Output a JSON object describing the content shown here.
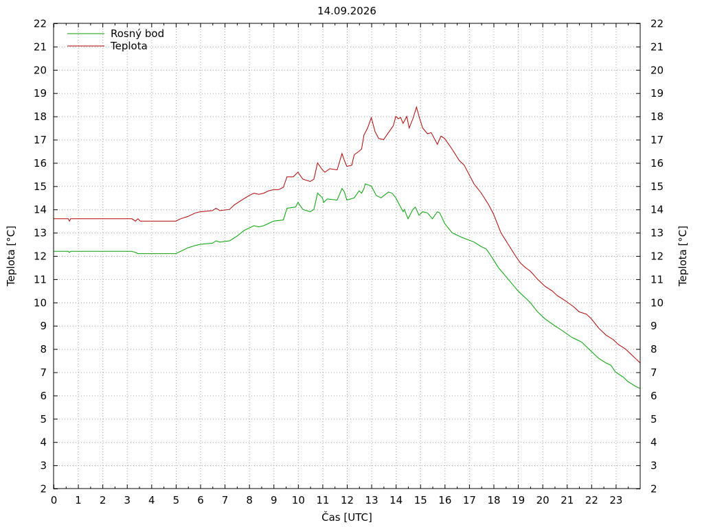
{
  "chart_data": {
    "type": "line",
    "title": "14.09.2026",
    "xlabel": "Čas [UTC]",
    "ylabel": "Teplota [°C]",
    "ylabel_right": "Teplota [°C]",
    "xlim": [
      0,
      24
    ],
    "ylim": [
      2,
      22
    ],
    "x_ticks": [
      0,
      1,
      2,
      3,
      4,
      5,
      6,
      7,
      8,
      9,
      10,
      11,
      12,
      13,
      14,
      15,
      16,
      17,
      18,
      19,
      20,
      21,
      22,
      23
    ],
    "y_ticks": [
      2,
      3,
      4,
      5,
      6,
      7,
      8,
      9,
      10,
      11,
      12,
      13,
      14,
      15,
      16,
      17,
      18,
      19,
      20,
      21,
      22
    ],
    "grid": true,
    "legend_position": "top-left",
    "series": [
      {
        "name": "Rosný bod",
        "color": "#00a000",
        "points": [
          [
            0,
            12.2
          ],
          [
            0.6,
            12.2
          ],
          [
            0.65,
            12.15
          ],
          [
            0.7,
            12.2
          ],
          [
            3.2,
            12.2
          ],
          [
            3.35,
            12.15
          ],
          [
            3.45,
            12.1
          ],
          [
            5.0,
            12.1
          ],
          [
            5.2,
            12.2
          ],
          [
            5.5,
            12.35
          ],
          [
            5.8,
            12.45
          ],
          [
            6.0,
            12.5
          ],
          [
            6.5,
            12.55
          ],
          [
            6.65,
            12.65
          ],
          [
            6.8,
            12.6
          ],
          [
            7.2,
            12.65
          ],
          [
            7.5,
            12.85
          ],
          [
            7.8,
            13.1
          ],
          [
            8.0,
            13.2
          ],
          [
            8.2,
            13.3
          ],
          [
            8.4,
            13.25
          ],
          [
            8.6,
            13.3
          ],
          [
            8.8,
            13.4
          ],
          [
            9.0,
            13.5
          ],
          [
            9.4,
            13.55
          ],
          [
            9.55,
            14.05
          ],
          [
            9.9,
            14.1
          ],
          [
            10.0,
            14.3
          ],
          [
            10.2,
            14.0
          ],
          [
            10.5,
            13.9
          ],
          [
            10.65,
            14.0
          ],
          [
            10.8,
            14.7
          ],
          [
            11.0,
            14.5
          ],
          [
            11.05,
            14.3
          ],
          [
            11.2,
            14.45
          ],
          [
            11.6,
            14.4
          ],
          [
            11.8,
            14.9
          ],
          [
            11.9,
            14.75
          ],
          [
            12.0,
            14.4
          ],
          [
            12.3,
            14.5
          ],
          [
            12.5,
            14.8
          ],
          [
            12.6,
            14.7
          ],
          [
            12.7,
            14.9
          ],
          [
            12.75,
            15.1
          ],
          [
            13.0,
            15.0
          ],
          [
            13.2,
            14.6
          ],
          [
            13.4,
            14.5
          ],
          [
            13.7,
            14.75
          ],
          [
            13.85,
            14.7
          ],
          [
            14.0,
            14.5
          ],
          [
            14.3,
            13.9
          ],
          [
            14.35,
            14.0
          ],
          [
            14.5,
            13.6
          ],
          [
            14.7,
            14.0
          ],
          [
            14.8,
            14.1
          ],
          [
            14.95,
            13.75
          ],
          [
            15.1,
            13.9
          ],
          [
            15.3,
            13.85
          ],
          [
            15.5,
            13.6
          ],
          [
            15.7,
            13.9
          ],
          [
            15.8,
            13.85
          ],
          [
            16.0,
            13.4
          ],
          [
            16.3,
            13.0
          ],
          [
            16.7,
            12.8
          ],
          [
            17.2,
            12.6
          ],
          [
            17.5,
            12.4
          ],
          [
            17.7,
            12.3
          ],
          [
            17.9,
            12.0
          ],
          [
            18.2,
            11.5
          ],
          [
            18.6,
            11.0
          ],
          [
            19.0,
            10.5
          ],
          [
            19.3,
            10.2
          ],
          [
            19.5,
            10.0
          ],
          [
            19.8,
            9.6
          ],
          [
            20.1,
            9.3
          ],
          [
            20.5,
            9.0
          ],
          [
            20.8,
            8.8
          ],
          [
            21.2,
            8.5
          ],
          [
            21.4,
            8.4
          ],
          [
            21.6,
            8.3
          ],
          [
            22.0,
            7.9
          ],
          [
            22.3,
            7.6
          ],
          [
            22.6,
            7.4
          ],
          [
            22.8,
            7.3
          ],
          [
            23.0,
            7.0
          ],
          [
            23.3,
            6.8
          ],
          [
            23.5,
            6.6
          ],
          [
            23.8,
            6.4
          ],
          [
            24.0,
            6.3
          ]
        ]
      },
      {
        "name": "Teplota",
        "color": "#b00000",
        "points": [
          [
            0,
            13.6
          ],
          [
            0.6,
            13.6
          ],
          [
            0.65,
            13.5
          ],
          [
            0.7,
            13.6
          ],
          [
            3.2,
            13.6
          ],
          [
            3.35,
            13.5
          ],
          [
            3.45,
            13.6
          ],
          [
            3.55,
            13.5
          ],
          [
            5.0,
            13.5
          ],
          [
            5.2,
            13.6
          ],
          [
            5.5,
            13.7
          ],
          [
            5.8,
            13.85
          ],
          [
            6.0,
            13.9
          ],
          [
            6.5,
            13.95
          ],
          [
            6.65,
            14.05
          ],
          [
            6.8,
            13.95
          ],
          [
            7.2,
            14.0
          ],
          [
            7.4,
            14.2
          ],
          [
            7.7,
            14.4
          ],
          [
            8.0,
            14.6
          ],
          [
            8.2,
            14.7
          ],
          [
            8.4,
            14.65
          ],
          [
            8.6,
            14.7
          ],
          [
            8.8,
            14.8
          ],
          [
            9.0,
            14.85
          ],
          [
            9.2,
            14.85
          ],
          [
            9.4,
            14.95
          ],
          [
            9.55,
            15.4
          ],
          [
            9.8,
            15.4
          ],
          [
            10.0,
            15.6
          ],
          [
            10.2,
            15.3
          ],
          [
            10.5,
            15.2
          ],
          [
            10.65,
            15.3
          ],
          [
            10.8,
            16.0
          ],
          [
            11.0,
            15.7
          ],
          [
            11.1,
            15.6
          ],
          [
            11.3,
            15.75
          ],
          [
            11.6,
            15.7
          ],
          [
            11.8,
            16.4
          ],
          [
            11.9,
            16.1
          ],
          [
            12.0,
            15.85
          ],
          [
            12.2,
            15.9
          ],
          [
            12.3,
            16.35
          ],
          [
            12.5,
            16.5
          ],
          [
            12.6,
            16.6
          ],
          [
            12.7,
            17.2
          ],
          [
            12.85,
            17.5
          ],
          [
            13.0,
            17.95
          ],
          [
            13.15,
            17.35
          ],
          [
            13.3,
            17.05
          ],
          [
            13.5,
            17.0
          ],
          [
            13.7,
            17.3
          ],
          [
            13.9,
            17.6
          ],
          [
            14.0,
            18.0
          ],
          [
            14.1,
            17.9
          ],
          [
            14.2,
            17.95
          ],
          [
            14.3,
            17.7
          ],
          [
            14.45,
            18.0
          ],
          [
            14.55,
            17.5
          ],
          [
            14.7,
            17.9
          ],
          [
            14.85,
            18.4
          ],
          [
            14.95,
            18.0
          ],
          [
            15.1,
            17.5
          ],
          [
            15.3,
            17.25
          ],
          [
            15.45,
            17.3
          ],
          [
            15.7,
            16.8
          ],
          [
            15.85,
            17.15
          ],
          [
            16.0,
            17.05
          ],
          [
            16.3,
            16.6
          ],
          [
            16.6,
            16.1
          ],
          [
            16.8,
            15.9
          ],
          [
            17.0,
            15.5
          ],
          [
            17.2,
            15.1
          ],
          [
            17.5,
            14.7
          ],
          [
            17.8,
            14.2
          ],
          [
            18.0,
            13.8
          ],
          [
            18.3,
            13.0
          ],
          [
            18.6,
            12.5
          ],
          [
            18.9,
            12.0
          ],
          [
            19.1,
            11.7
          ],
          [
            19.3,
            11.5
          ],
          [
            19.5,
            11.35
          ],
          [
            19.8,
            11.0
          ],
          [
            20.1,
            10.7
          ],
          [
            20.4,
            10.5
          ],
          [
            20.6,
            10.3
          ],
          [
            20.9,
            10.1
          ],
          [
            21.1,
            9.95
          ],
          [
            21.3,
            9.8
          ],
          [
            21.5,
            9.6
          ],
          [
            21.8,
            9.5
          ],
          [
            22.0,
            9.3
          ],
          [
            22.3,
            8.9
          ],
          [
            22.6,
            8.6
          ],
          [
            22.9,
            8.4
          ],
          [
            23.1,
            8.2
          ],
          [
            23.4,
            8.0
          ],
          [
            23.6,
            7.8
          ],
          [
            23.8,
            7.6
          ],
          [
            24.0,
            7.4
          ]
        ]
      }
    ]
  }
}
